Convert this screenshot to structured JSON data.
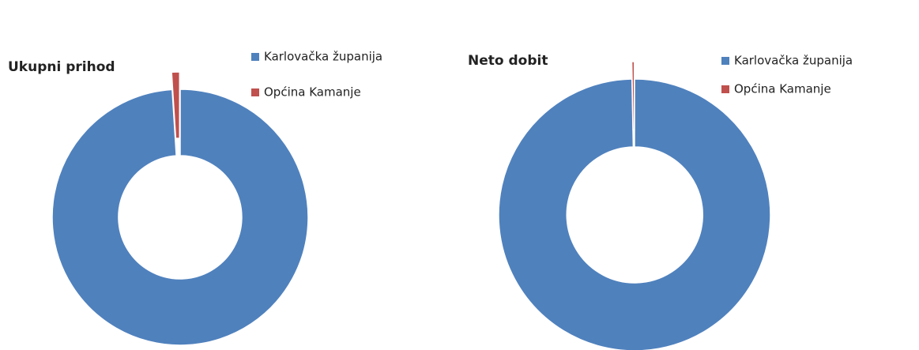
{
  "chart_data": [
    {
      "type": "donut",
      "title": "Ukupni prihod",
      "categories": [
        "Karlovačka županija",
        "Općina Kamanje"
      ],
      "values": [
        99,
        1
      ],
      "colors": [
        "#4f81bd",
        "#c0504d"
      ]
    },
    {
      "type": "donut",
      "title": "Neto dobit",
      "categories": [
        "Karlovačka županija",
        "Općina Kamanje"
      ],
      "values": [
        99.7,
        0.3
      ],
      "colors": [
        "#4f81bd",
        "#c0504d"
      ]
    }
  ]
}
